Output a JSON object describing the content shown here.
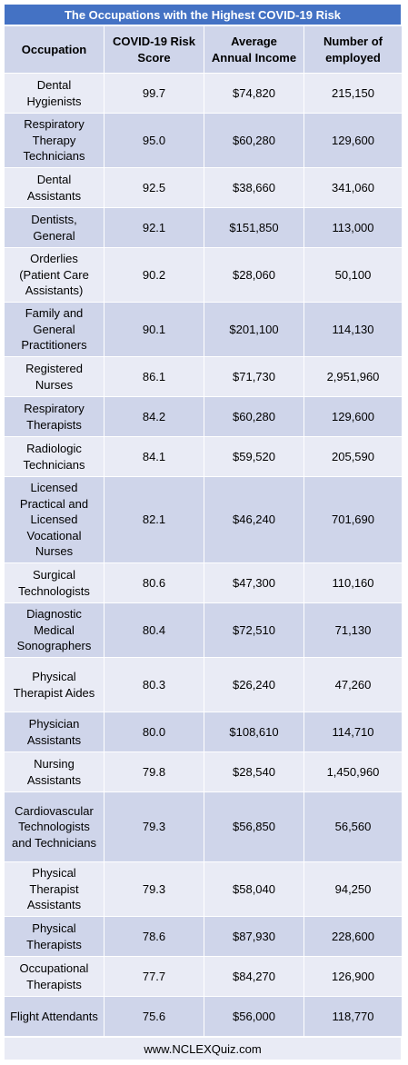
{
  "title": "The Occupations with the Highest COVID-19 Risk",
  "headers": [
    "Occupation",
    "COVID-19 Risk Score",
    "Average Annual Income",
    "Number of employed"
  ],
  "rows": [
    {
      "occupation": "Dental Hygienists",
      "score": "99.7",
      "income": "$74,820",
      "employed": "215,150"
    },
    {
      "occupation": "Respiratory Therapy Technicians",
      "score": "95.0",
      "income": "$60,280",
      "employed": "129,600"
    },
    {
      "occupation": "Dental Assistants",
      "score": "92.5",
      "income": "$38,660",
      "employed": "341,060"
    },
    {
      "occupation": "Dentists, General",
      "score": "92.1",
      "income": "$151,850",
      "employed": "113,000"
    },
    {
      "occupation": "Orderlies (Patient Care Assistants)",
      "score": "90.2",
      "income": "$28,060",
      "employed": "50,100"
    },
    {
      "occupation": "Family and General Practitioners",
      "score": "90.1",
      "income": "$201,100",
      "employed": "114,130"
    },
    {
      "occupation": "Registered Nurses",
      "score": "86.1",
      "income": "$71,730",
      "employed": "2,951,960"
    },
    {
      "occupation": "Respiratory Therapists",
      "score": "84.2",
      "income": "$60,280",
      "employed": "129,600"
    },
    {
      "occupation": "Radiologic Technicians",
      "score": "84.1",
      "income": "$59,520",
      "employed": "205,590"
    },
    {
      "occupation": "Licensed Practical and Licensed Vocational Nurses",
      "score": "82.1",
      "income": "$46,240",
      "employed": "701,690"
    },
    {
      "occupation": "Surgical Technologists",
      "score": "80.6",
      "income": "$47,300",
      "employed": "110,160"
    },
    {
      "occupation": "Diagnostic Medical Sonographers",
      "score": "80.4",
      "income": "$72,510",
      "employed": "71,130"
    },
    {
      "occupation": "Physical Therapist Aides",
      "score": "80.3",
      "income": "$26,240",
      "employed": "47,260"
    },
    {
      "occupation": "Physician Assistants",
      "score": "80.0",
      "income": "$108,610",
      "employed": "114,710"
    },
    {
      "occupation": "Nursing Assistants",
      "score": "79.8",
      "income": "$28,540",
      "employed": "1,450,960"
    },
    {
      "occupation": "Cardiovascular Technologists and Technicians",
      "score": "79.3",
      "income": "$56,850",
      "employed": "56,560"
    },
    {
      "occupation": "Physical Therapist Assistants",
      "score": "79.3",
      "income": "$58,040",
      "employed": "94,250"
    },
    {
      "occupation": "Physical Therapists",
      "score": "78.6",
      "income": "$87,930",
      "employed": "228,600"
    },
    {
      "occupation": "Occupational Therapists",
      "score": "77.7",
      "income": "$84,270",
      "employed": "126,900"
    },
    {
      "occupation": "Flight Attendants",
      "score": "75.6",
      "income": "$56,000",
      "employed": "118,770"
    }
  ],
  "footer": "www.NCLEXQuiz.com",
  "colors": {
    "title_bg": "#4472c4",
    "band_light": "#e9ebf5",
    "band_dark": "#cfd5ea"
  }
}
